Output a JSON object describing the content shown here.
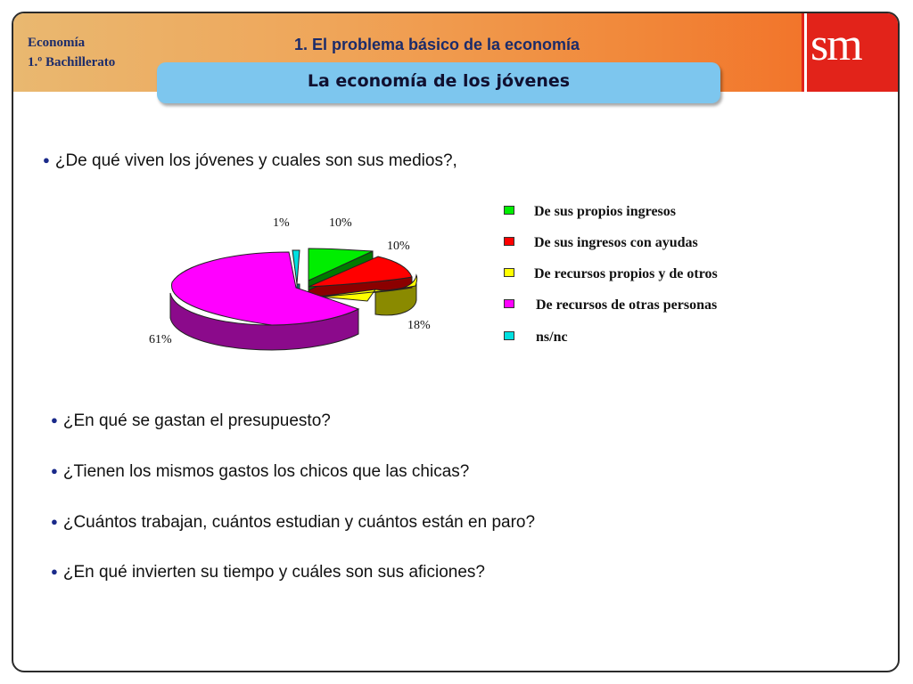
{
  "header": {
    "subject_line1": "Economía",
    "subject_line2": "1.º Bachillerato",
    "unit_title": "1. El problema básico de la economía",
    "logo": "sm"
  },
  "banner": {
    "title": "La economía de los jóvenes"
  },
  "questions": [
    "¿De qué viven los jóvenes y cuales son sus medios?,",
    "¿En qué se gastan el presupuesto?",
    "¿Tienen los mismos gastos los chicos que las chicas?",
    "¿Cuántos trabajan, cuántos estudian y cuántos están en paro?",
    "¿En qué invierten su tiempo y cuáles son sus aficiones?"
  ],
  "colors": {
    "accent": "#e2231a",
    "banner": "#7dc6ee",
    "text_title": "#1b2b6a"
  },
  "chart_data": {
    "type": "pie",
    "title": "",
    "categories": [
      "De sus propios ingresos",
      "De sus ingresos con ayudas",
      "De recursos propios y de otros",
      "De recursos de otras personas",
      "ns/nc"
    ],
    "values": [
      10,
      10,
      18,
      61,
      1
    ],
    "labels": [
      "10%",
      "10%",
      "18%",
      "61%",
      "1%"
    ],
    "colors": [
      "#00ee00",
      "#ff0000",
      "#ffff00",
      "#ff00ff",
      "#00e0e0"
    ],
    "legend_position": "right",
    "exploded": true,
    "three_d": true
  }
}
